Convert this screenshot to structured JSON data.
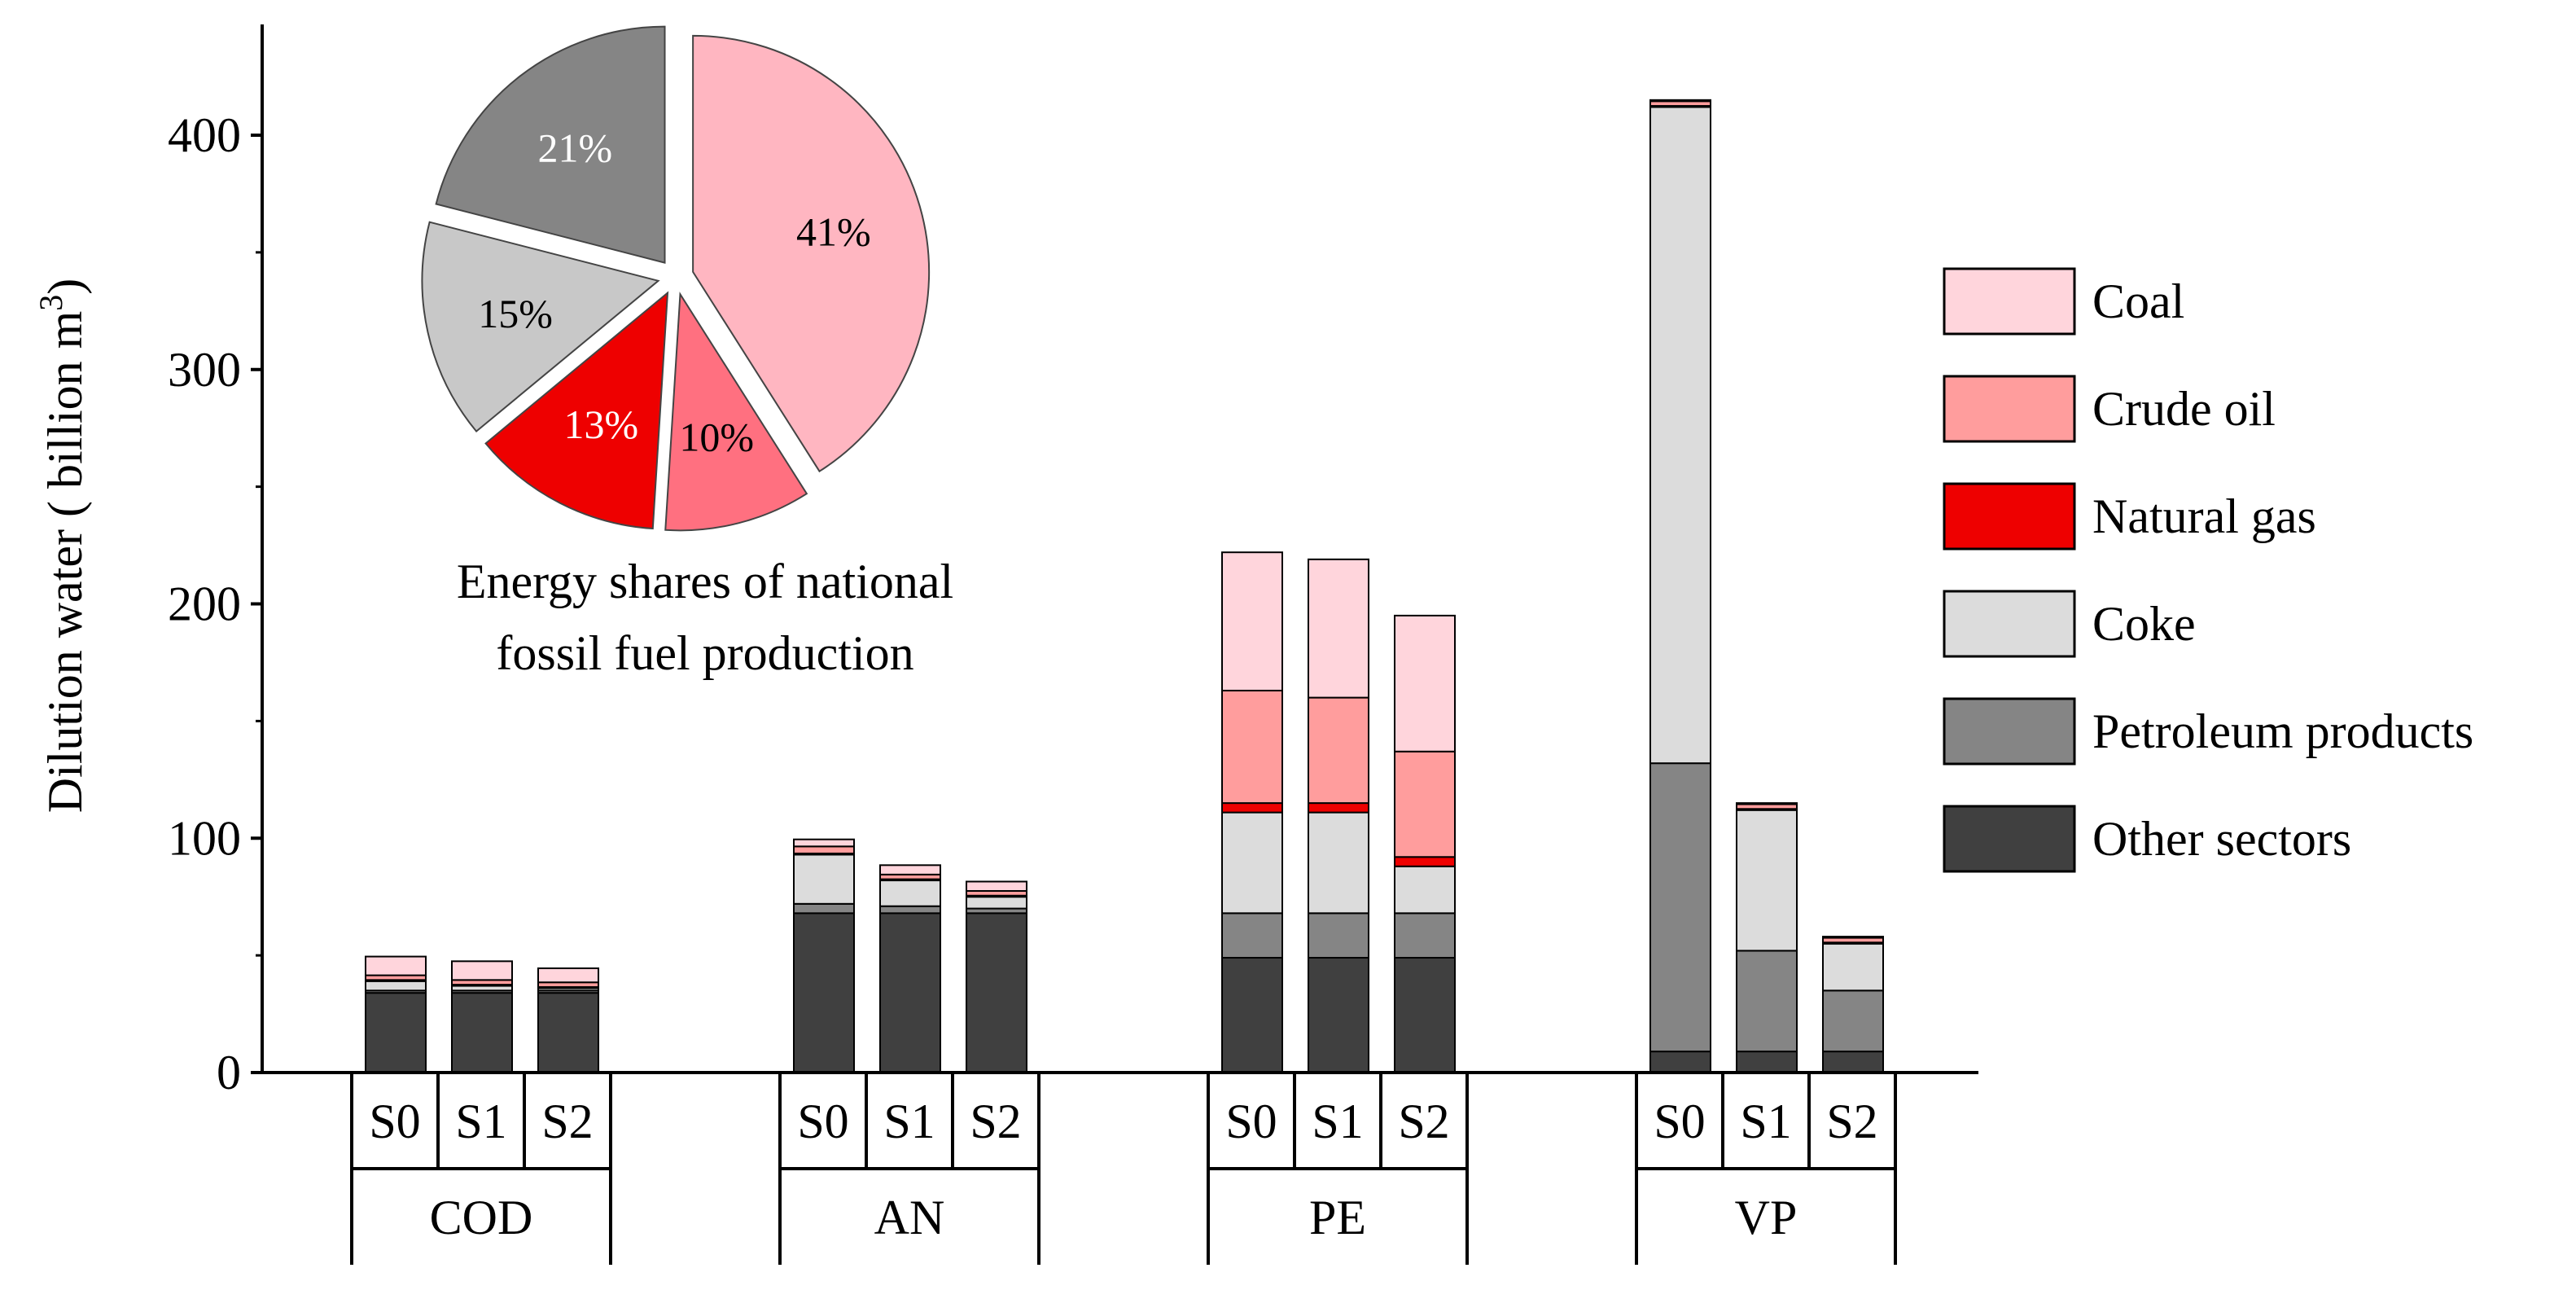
{
  "chart_data": [
    {
      "type": "bar",
      "stacked": true,
      "ylabel": "Dilution water ( billion m",
      "ylabel_sup": "3",
      "ylabel_close": ")",
      "ylim": [
        0,
        450
      ],
      "yticks": [
        "0",
        "100",
        "200",
        "300",
        "400"
      ],
      "groups": [
        "COD",
        "AN",
        "PE",
        "VP"
      ],
      "scenarios": [
        "S0",
        "S1",
        "S2"
      ],
      "categories": [
        "COD S0",
        "COD S1",
        "COD S2",
        "AN S0",
        "AN S1",
        "AN S2",
        "PE S0",
        "PE S1",
        "PE S2",
        "VP S0",
        "VP S1",
        "VP S2"
      ],
      "legend_position": "right",
      "series": [
        {
          "name": "Other sectors",
          "color": "#404040",
          "values": [
            34,
            34,
            34,
            68,
            68,
            68,
            49,
            49,
            49,
            9,
            9,
            9
          ]
        },
        {
          "name": "Petroleum products",
          "color": "#858585",
          "values": [
            1,
            1,
            1,
            4,
            3,
            2,
            19,
            19,
            19,
            123,
            43,
            26
          ]
        },
        {
          "name": "Coke",
          "color": "#dcdcdc",
          "values": [
            4,
            2,
            1,
            21,
            11,
            5,
            43,
            43,
            20,
            280,
            60,
            20
          ]
        },
        {
          "name": "Natural gas",
          "color": "#ee0000",
          "values": [
            0.5,
            0.5,
            0.5,
            0.5,
            0.5,
            0.5,
            4,
            4,
            4,
            0.5,
            0.5,
            0.5
          ]
        },
        {
          "name": "Crude oil",
          "color": "#ff9d9d",
          "values": [
            2,
            2,
            2,
            3,
            2,
            2,
            48,
            45,
            45,
            2,
            2,
            2
          ]
        },
        {
          "name": "Coal",
          "color": "#ffd5dc",
          "values": [
            8,
            8,
            6,
            3,
            4,
            4,
            59,
            59,
            58,
            0.5,
            0.5,
            0.5
          ]
        }
      ],
      "legend_order": [
        "Coal",
        "Crude oil",
        "Natural gas",
        "Coke",
        "Petroleum products",
        "Other sectors"
      ]
    },
    {
      "type": "pie",
      "title_lines": [
        "Energy shares of national",
        "fossil fuel production"
      ],
      "slices": [
        {
          "name": "Coal",
          "value": 41,
          "label": "41%",
          "color": "#ffb6c1",
          "label_color": "#000000"
        },
        {
          "name": "Crude oil",
          "value": 10,
          "label": "10%",
          "color": "#ff7080",
          "label_color": "#000000"
        },
        {
          "name": "Natural gas",
          "value": 13,
          "label": "13%",
          "color": "#ee0000",
          "label_color": "#ffffff"
        },
        {
          "name": "Coke",
          "value": 15,
          "label": "15%",
          "color": "#c8c8c8",
          "label_color": "#000000"
        },
        {
          "name": "Petroleum products",
          "value": 21,
          "label": "21%",
          "color": "#858585",
          "label_color": "#ffffff"
        }
      ]
    }
  ]
}
